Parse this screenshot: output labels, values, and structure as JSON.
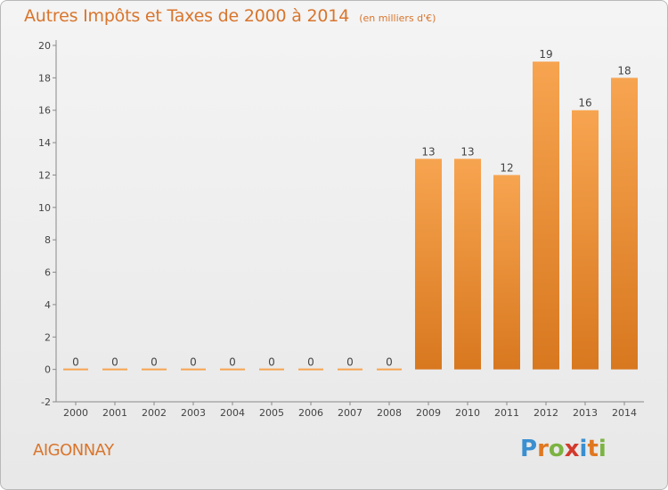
{
  "header": {
    "title": "Autres Impôts et Taxes de 2000 à 2014",
    "unit": "(en milliers d'€)"
  },
  "footer": {
    "commune": "AIGONNAY",
    "brand_letters": [
      "P",
      "r",
      "o",
      "x",
      "i",
      "t",
      "i"
    ]
  },
  "colors": {
    "accent": "#d9752c",
    "bar_light": "#f7a450",
    "bar_dark": "#d8781f",
    "brand_letters": [
      "#3a8fd0",
      "#e07820",
      "#7cb342",
      "#d33a2c",
      "#3a8fd0",
      "#e07820",
      "#7cb342"
    ]
  },
  "chart_data": {
    "type": "bar",
    "title": "Autres Impôts et Taxes de 2000 à 2014",
    "subtitle": "(en milliers d'€)",
    "categories": [
      "2000",
      "2001",
      "2002",
      "2003",
      "2004",
      "2005",
      "2006",
      "2007",
      "2008",
      "2009",
      "2010",
      "2011",
      "2012",
      "2013",
      "2014"
    ],
    "values": [
      0,
      0,
      0,
      0,
      0,
      0,
      0,
      0,
      0,
      13,
      13,
      12,
      19,
      16,
      18
    ],
    "value_labels": [
      "0",
      "0",
      "0",
      "0",
      "0",
      "0",
      "0",
      "0",
      "0",
      "13",
      "13",
      "12",
      "19",
      "16",
      "18"
    ],
    "ylim": [
      -2,
      20
    ],
    "yticks": [
      -2,
      0,
      2,
      4,
      6,
      8,
      10,
      12,
      14,
      16,
      18,
      20
    ],
    "grid": false,
    "legend": "none"
  }
}
